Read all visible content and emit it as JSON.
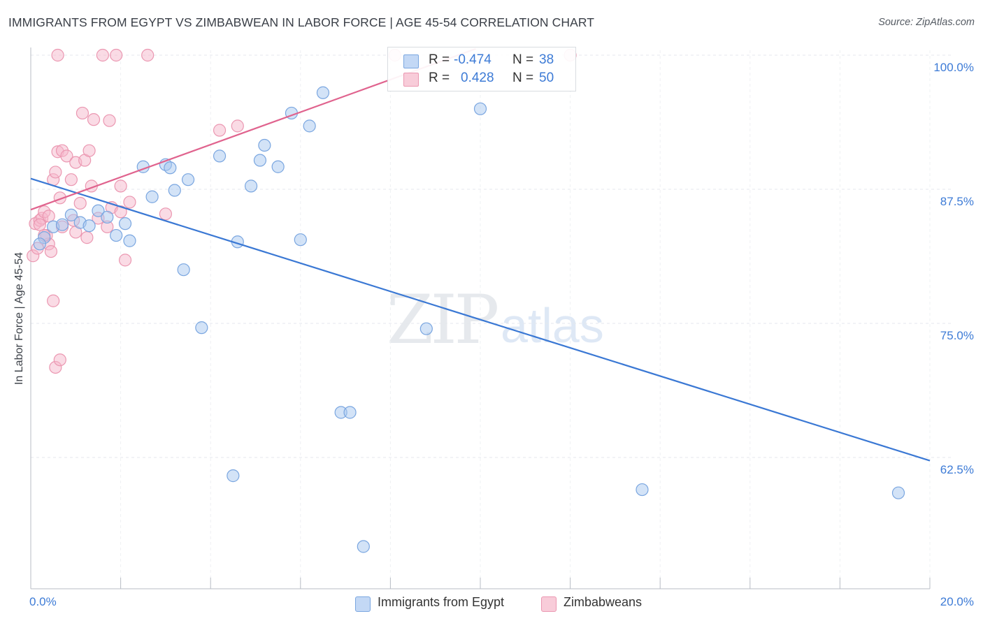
{
  "title": "IMMIGRANTS FROM EGYPT VS ZIMBABWEAN IN LABOR FORCE | AGE 45-54 CORRELATION CHART",
  "source": "Source: ZipAtlas.com",
  "watermark": {
    "zip": "ZIP",
    "atlas": "atlas"
  },
  "stats": {
    "rows": [
      {
        "r_label": "R = ",
        "r_value": "-0.474",
        "n_label": "N = ",
        "n_value": "38",
        "color": "#a8c8f0"
      },
      {
        "r_label": "R = ",
        "r_value": "0.428",
        "n_label": "N = ",
        "n_value": "50",
        "color": "#f5b8cb"
      }
    ]
  },
  "legend": [
    {
      "label": "Immigrants from Egypt",
      "color": "#a8c8f0"
    },
    {
      "label": "Zimbabweans",
      "color": "#f5b8cb"
    }
  ],
  "chart_data": {
    "type": "scatter",
    "title": "IMMIGRANTS FROM EGYPT VS ZIMBABWEAN IN LABOR FORCE | AGE 45-54 CORRELATION CHART",
    "ylabel": "In Labor Force | Age 45-54",
    "xlabel": "",
    "xlim": [
      0,
      20
    ],
    "ylim": [
      50.7,
      101.0
    ],
    "x_ticks": [
      {
        "value": 0,
        "label": "0.0%"
      },
      {
        "value": 20,
        "label": "20.0%"
      }
    ],
    "y_ticks": [
      {
        "value": 100,
        "label": "100.0%"
      },
      {
        "value": 87.5,
        "label": "87.5%"
      },
      {
        "value": 75,
        "label": "75.0%"
      },
      {
        "value": 62.5,
        "label": "62.5%"
      }
    ],
    "grid": true,
    "series": [
      {
        "name": "Immigrants from Egypt",
        "color": "#a8c8f0",
        "stroke": "#7aa6e0",
        "line_color": "#3a78d4",
        "trend": {
          "x": [
            0,
            20
          ],
          "y": [
            88.5,
            62.2
          ]
        },
        "points": [
          [
            0.3,
            83.0
          ],
          [
            0.5,
            84.0
          ],
          [
            0.7,
            84.2
          ],
          [
            0.9,
            85.1
          ],
          [
            1.1,
            84.4
          ],
          [
            1.3,
            84.1
          ],
          [
            1.5,
            85.5
          ],
          [
            1.7,
            84.9
          ],
          [
            1.9,
            83.2
          ],
          [
            2.1,
            84.3
          ],
          [
            2.2,
            82.7
          ],
          [
            2.5,
            89.6
          ],
          [
            2.7,
            86.8
          ],
          [
            3.0,
            89.8
          ],
          [
            3.1,
            89.5
          ],
          [
            3.2,
            87.4
          ],
          [
            3.4,
            80.0
          ],
          [
            3.5,
            88.4
          ],
          [
            3.8,
            74.6
          ],
          [
            4.2,
            90.6
          ],
          [
            4.6,
            82.6
          ],
          [
            4.5,
            60.8
          ],
          [
            4.9,
            87.8
          ],
          [
            5.1,
            90.2
          ],
          [
            5.2,
            91.6
          ],
          [
            5.5,
            89.6
          ],
          [
            5.8,
            94.6
          ],
          [
            6.0,
            82.8
          ],
          [
            6.2,
            93.4
          ],
          [
            6.5,
            96.5
          ],
          [
            6.9,
            66.7
          ],
          [
            7.1,
            66.7
          ],
          [
            7.4,
            54.2
          ],
          [
            8.8,
            74.5
          ],
          [
            10.0,
            95.0
          ],
          [
            13.6,
            59.5
          ],
          [
            19.3,
            59.2
          ],
          [
            0.2,
            82.4
          ]
        ]
      },
      {
        "name": "Zimbabweans",
        "color": "#f5b8cb",
        "stroke": "#eb97b1",
        "line_color": "#e0638e",
        "trend": {
          "x": [
            0,
            9.9
          ],
          "y": [
            85.6,
            100.6
          ]
        },
        "points": [
          [
            0.05,
            81.3
          ],
          [
            0.1,
            84.3
          ],
          [
            0.15,
            82.0
          ],
          [
            0.2,
            84.6
          ],
          [
            0.25,
            84.8
          ],
          [
            0.3,
            85.4
          ],
          [
            0.35,
            83.2
          ],
          [
            0.4,
            82.4
          ],
          [
            0.45,
            81.7
          ],
          [
            0.5,
            77.1
          ],
          [
            0.5,
            88.4
          ],
          [
            0.55,
            89.1
          ],
          [
            0.6,
            91.0
          ],
          [
            0.65,
            86.7
          ],
          [
            0.7,
            91.1
          ],
          [
            0.7,
            84.0
          ],
          [
            0.8,
            90.6
          ],
          [
            0.55,
            70.9
          ],
          [
            0.65,
            71.6
          ],
          [
            0.9,
            88.4
          ],
          [
            0.95,
            84.6
          ],
          [
            1.0,
            83.5
          ],
          [
            1.0,
            90.0
          ],
          [
            1.1,
            86.2
          ],
          [
            1.15,
            94.6
          ],
          [
            1.2,
            90.2
          ],
          [
            1.25,
            83.0
          ],
          [
            1.3,
            91.1
          ],
          [
            1.35,
            87.8
          ],
          [
            1.5,
            84.8
          ],
          [
            1.6,
            100.0
          ],
          [
            1.7,
            84.0
          ],
          [
            1.75,
            93.9
          ],
          [
            1.8,
            85.8
          ],
          [
            1.9,
            100.0
          ],
          [
            2.0,
            87.8
          ],
          [
            2.0,
            85.4
          ],
          [
            2.1,
            80.9
          ],
          [
            2.2,
            86.3
          ],
          [
            2.6,
            100.0
          ],
          [
            3.0,
            85.2
          ],
          [
            4.2,
            93.0
          ],
          [
            4.6,
            93.4
          ],
          [
            8.1,
            100.0
          ],
          [
            12.0,
            100.0
          ],
          [
            0.2,
            84.2
          ],
          [
            0.3,
            83.2
          ],
          [
            0.6,
            100.0
          ],
          [
            0.4,
            85.0
          ],
          [
            1.4,
            94.0
          ]
        ]
      }
    ]
  }
}
